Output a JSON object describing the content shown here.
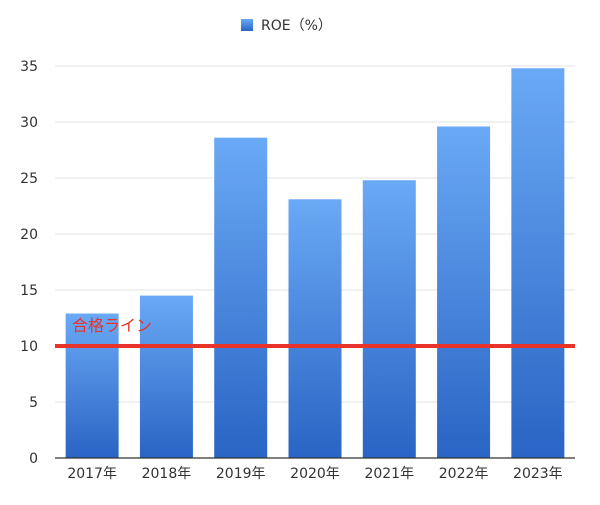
{
  "chart_data": {
    "type": "bar",
    "categories": [
      "2017年",
      "2018年",
      "2019年",
      "2020年",
      "2021年",
      "2022年",
      "2023年"
    ],
    "series": [
      {
        "name": "ROE（%）",
        "values": [
          12.9,
          14.5,
          28.6,
          23.1,
          24.8,
          29.6,
          34.8
        ]
      }
    ],
    "ylim": [
      0,
      35
    ],
    "yticks": [
      0,
      5,
      10,
      15,
      20,
      25,
      30,
      35
    ],
    "ytick_labels": [
      "0",
      "5",
      "10",
      "15",
      "20",
      "25",
      "30",
      "35"
    ],
    "grid": true,
    "legend_position": "top-center",
    "reference_line": {
      "value": 10,
      "label": "合格ライン",
      "color": "#e8332a"
    },
    "colors": {
      "bar_top": "#6aa9f5",
      "bar_bottom": "#2a64c4",
      "grid": "#e3e3e3",
      "axis": "#333333"
    }
  }
}
